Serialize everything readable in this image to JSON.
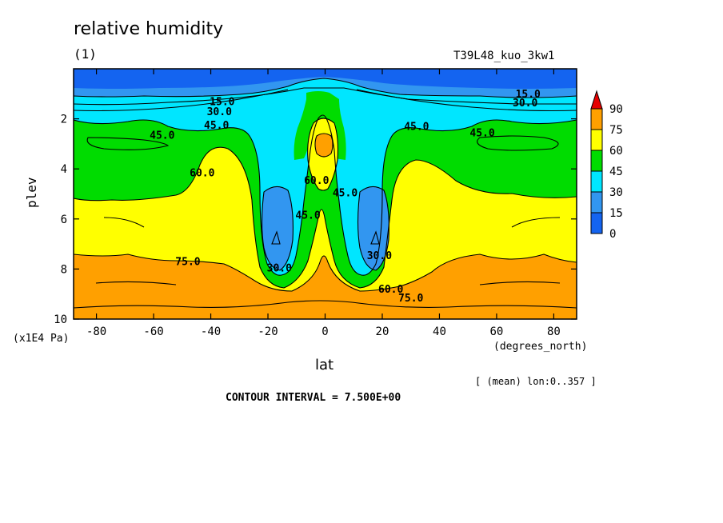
{
  "chart_data": {
    "type": "heatmap",
    "title": "relative humidity",
    "subtitle": "(1)",
    "experiment": "T39L48_kuo_3kw1",
    "xlabel": "lat",
    "xunit": "(degrees_north)",
    "ylabel": "plev",
    "yunit": "(x1E4 Pa)",
    "xlim": [
      -88,
      88
    ],
    "ylim": [
      10,
      0
    ],
    "xticks": [
      -80,
      -60,
      -40,
      -20,
      0,
      20,
      40,
      60,
      80
    ],
    "yticks": [
      2,
      4,
      6,
      8,
      10
    ],
    "mean_note": "[ (mean) lon:0..357 ]",
    "contour_interval": "CONTOUR INTERVAL = 7.500E+00",
    "colorbar": {
      "levels": [
        0,
        15,
        30,
        45,
        60,
        75,
        90
      ],
      "colors": [
        "#1464f0",
        "#3296f0",
        "#00e6ff",
        "#00dc00",
        "#ffff00",
        "#ffa000",
        "#e60000"
      ]
    },
    "contour_labels": [
      {
        "text": "15.0",
        "lat": -36,
        "plev": 1.35
      },
      {
        "text": "30.0",
        "lat": -37,
        "plev": 1.75
      },
      {
        "text": "45.0",
        "lat": -38,
        "plev": 2.3
      },
      {
        "text": "45.0",
        "lat": -57,
        "plev": 2.7
      },
      {
        "text": "60.0",
        "lat": -43,
        "plev": 4.2
      },
      {
        "text": "75.0",
        "lat": -48,
        "plev": 7.75
      },
      {
        "text": "45.0",
        "lat": -6,
        "plev": 5.9
      },
      {
        "text": "30.0",
        "lat": -16,
        "plev": 8.0
      },
      {
        "text": "60.0",
        "lat": -3,
        "plev": 4.5
      },
      {
        "text": "45.0",
        "lat": 7,
        "plev": 5.0
      },
      {
        "text": "30.0",
        "lat": 19,
        "plev": 7.5
      },
      {
        "text": "60.0",
        "lat": 23,
        "plev": 8.85
      },
      {
        "text": "75.0",
        "lat": 30,
        "plev": 9.2
      },
      {
        "text": "45.0",
        "lat": 32,
        "plev": 2.35
      },
      {
        "text": "45.0",
        "lat": 55,
        "plev": 2.6
      },
      {
        "text": "15.0",
        "lat": 71,
        "plev": 1.05
      },
      {
        "text": "30.0",
        "lat": 70,
        "plev": 1.4
      }
    ]
  }
}
